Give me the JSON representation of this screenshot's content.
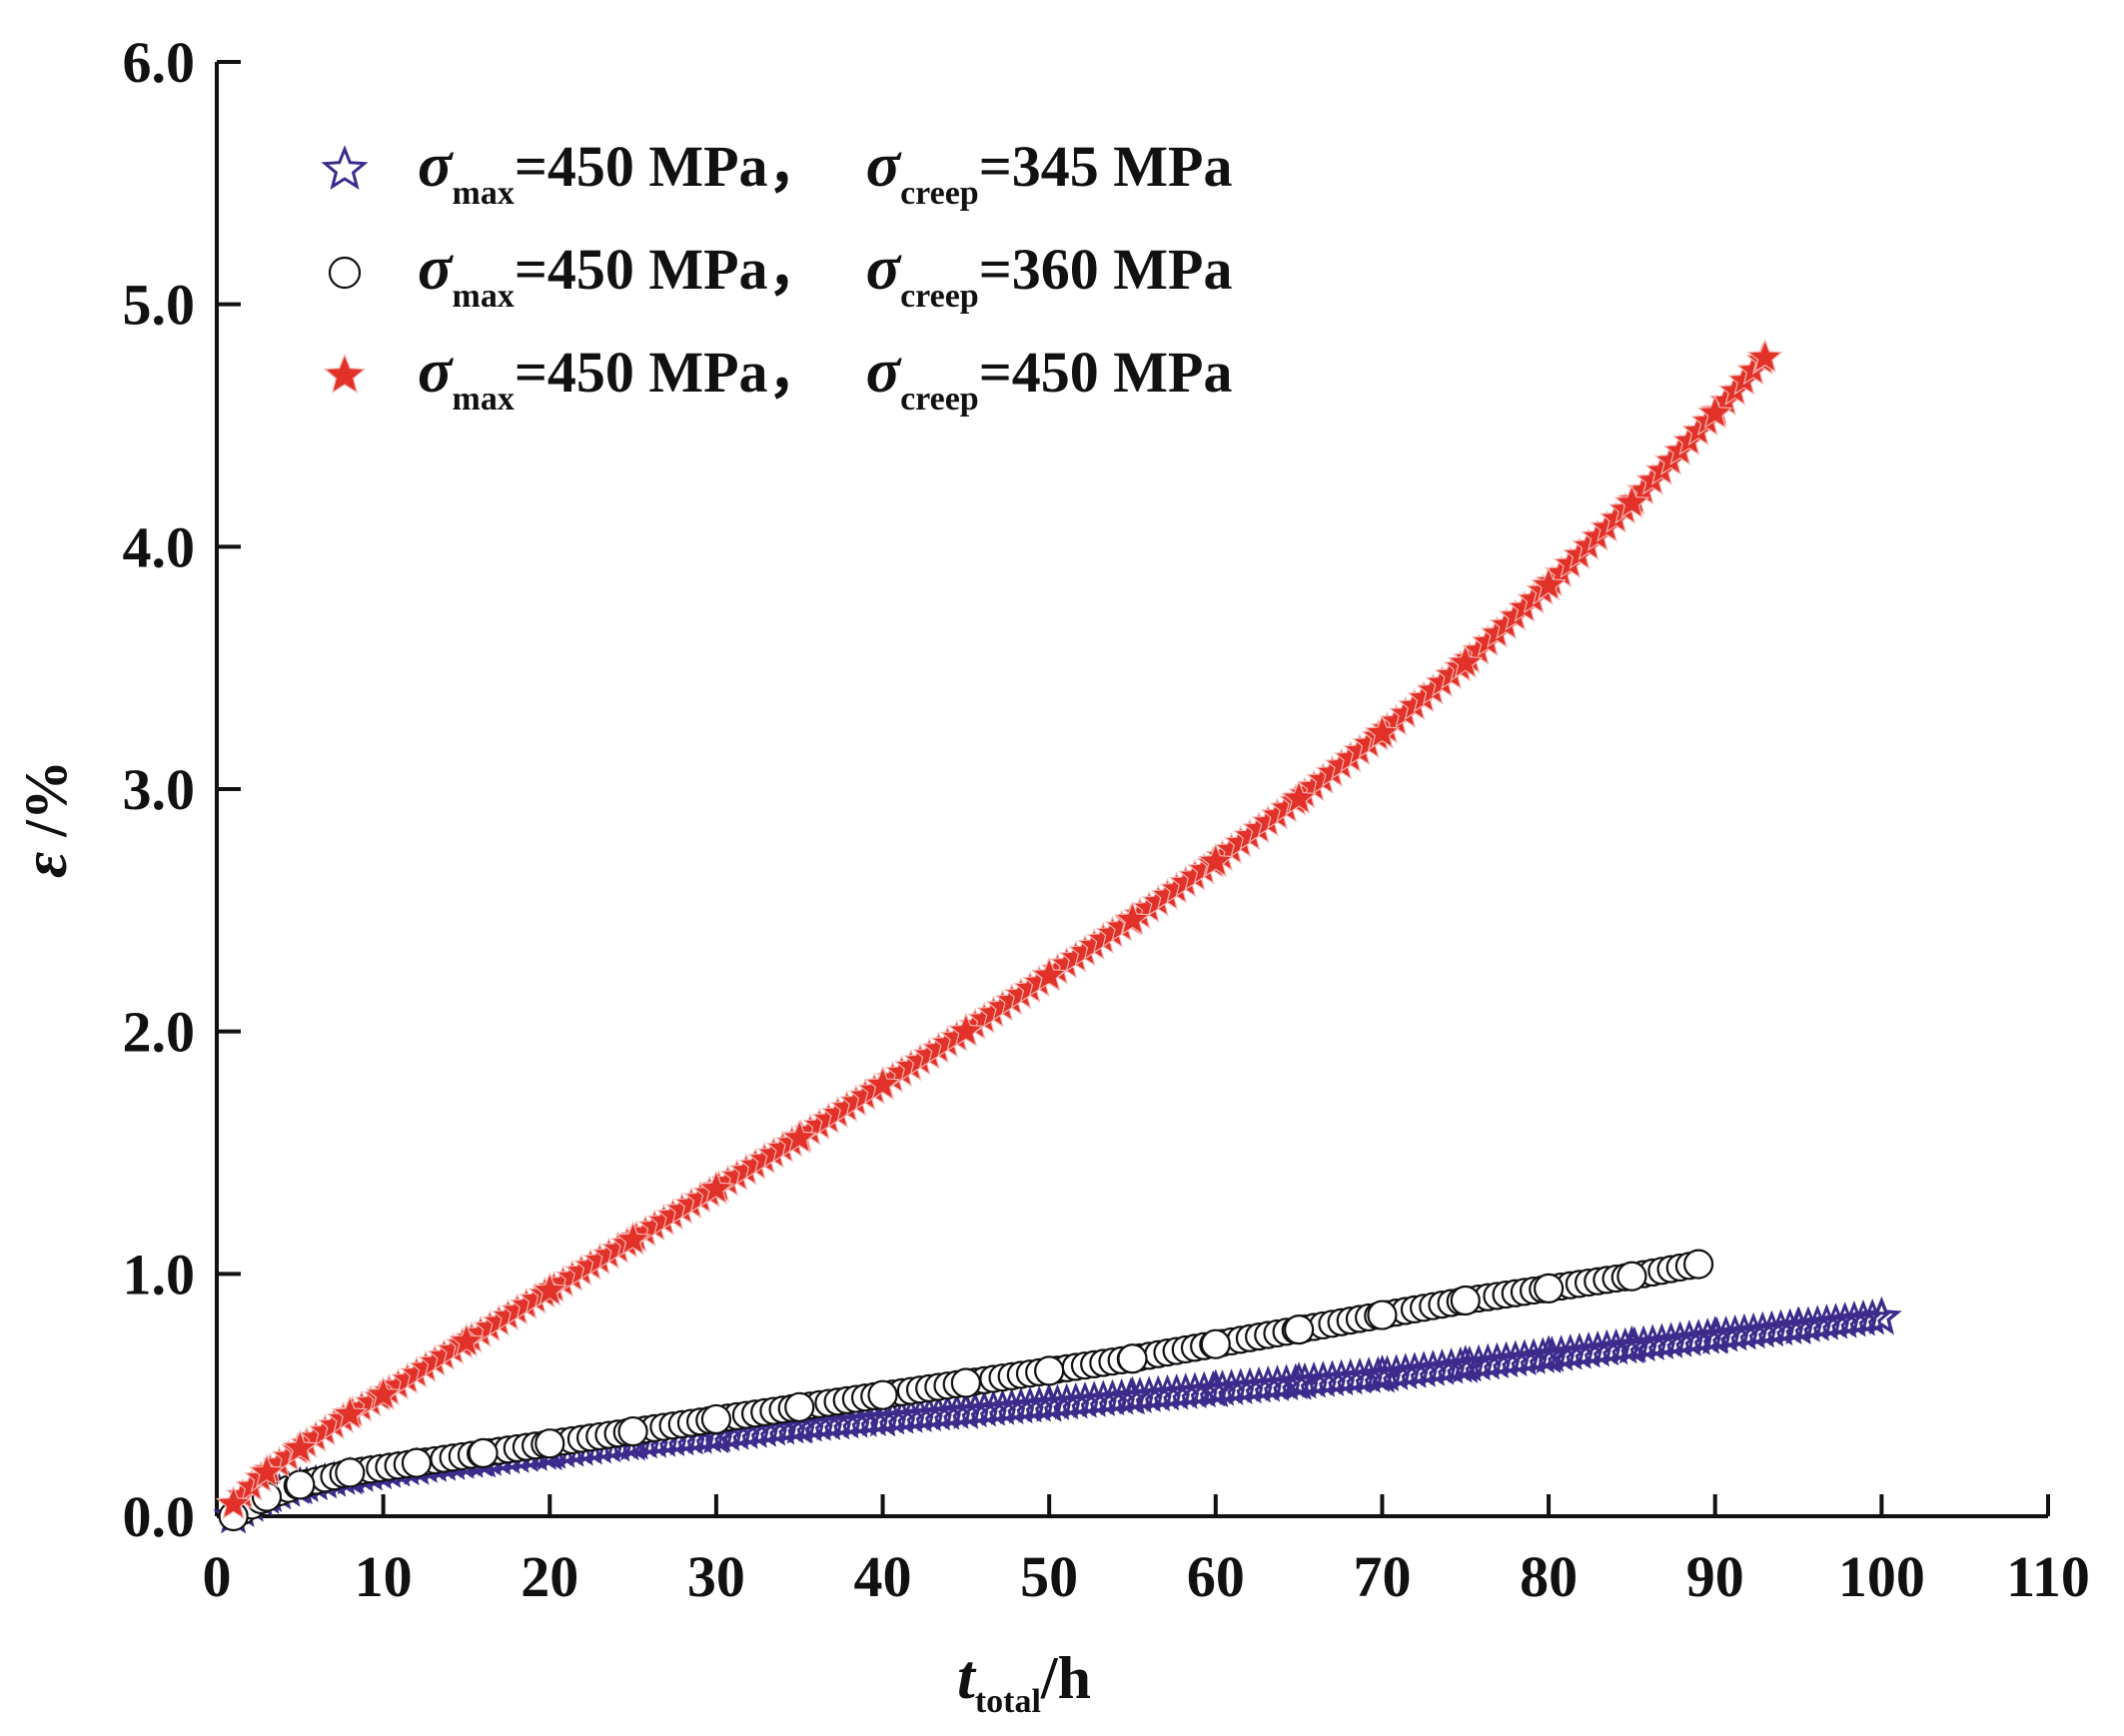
{
  "chart_data": {
    "type": "scatter",
    "xlabel": {
      "main": "t",
      "sub": "total",
      "unit": "/h"
    },
    "ylabel": {
      "main": "ε",
      "unit": " /%"
    },
    "xlim": [
      0,
      110
    ],
    "ylim": [
      0,
      6
    ],
    "x_ticks": [
      "0",
      "10",
      "20",
      "30",
      "40",
      "50",
      "60",
      "70",
      "80",
      "90",
      "100",
      "110"
    ],
    "y_ticks": [
      "0.0",
      "1.0",
      "2.0",
      "3.0",
      "4.0",
      "5.0",
      "6.0"
    ],
    "grid": false,
    "legend_position": "top-left",
    "series": [
      {
        "legend": {
          "sym1": "σ",
          "sub1": "max",
          "val1": "=450 MPa，",
          "sym2": "σ",
          "sub2": "creep",
          "val2": "=345 MPa"
        },
        "marker": "star-open",
        "color": "#3d2b8c",
        "x": [
          1,
          3,
          5,
          8,
          12,
          16,
          20,
          25,
          30,
          35,
          40,
          45,
          50,
          55,
          60,
          65,
          70,
          75,
          80,
          85,
          90,
          95,
          100
        ],
        "y": [
          0.0,
          0.08,
          0.12,
          0.16,
          0.2,
          0.23,
          0.26,
          0.3,
          0.33,
          0.37,
          0.4,
          0.43,
          0.46,
          0.49,
          0.52,
          0.55,
          0.58,
          0.62,
          0.66,
          0.7,
          0.74,
          0.78,
          0.82
        ]
      },
      {
        "legend": {
          "sym1": "σ",
          "sub1": "max",
          "val1": "=450 MPa，",
          "sym2": "σ",
          "sub2": "creep",
          "val2": "=360 MPa"
        },
        "marker": "circle-open",
        "color": "#111111",
        "x": [
          1,
          3,
          5,
          8,
          12,
          16,
          20,
          25,
          30,
          35,
          40,
          45,
          50,
          55,
          60,
          65,
          70,
          75,
          80,
          85,
          89
        ],
        "y": [
          0.0,
          0.08,
          0.13,
          0.18,
          0.22,
          0.26,
          0.3,
          0.35,
          0.4,
          0.45,
          0.5,
          0.55,
          0.6,
          0.65,
          0.71,
          0.77,
          0.83,
          0.89,
          0.94,
          0.99,
          1.04
        ]
      },
      {
        "legend": {
          "sym1": "σ",
          "sub1": "max",
          "val1": "=450 MPa，",
          "sym2": "σ",
          "sub2": "creep",
          "val2": "=450 MPa"
        },
        "marker": "star-filled",
        "color": "#e23128",
        "x": [
          1,
          3,
          5,
          8,
          10,
          15,
          20,
          25,
          30,
          35,
          40,
          45,
          50,
          55,
          60,
          65,
          70,
          75,
          80,
          85,
          90,
          93
        ],
        "y": [
          0.05,
          0.18,
          0.28,
          0.42,
          0.5,
          0.72,
          0.93,
          1.14,
          1.35,
          1.56,
          1.78,
          2.0,
          2.23,
          2.46,
          2.7,
          2.96,
          3.23,
          3.52,
          3.84,
          4.18,
          4.55,
          4.78
        ]
      }
    ]
  }
}
